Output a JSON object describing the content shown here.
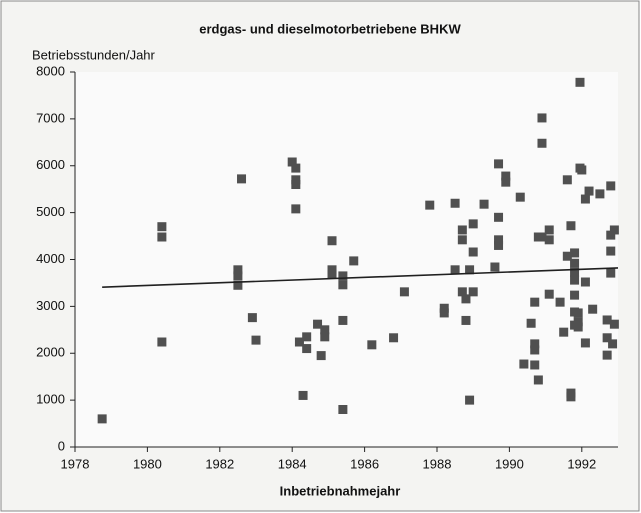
{
  "chart_data": {
    "type": "scatter",
    "title": "erdgas- und dieselmotorbetriebene BHKW",
    "ylabel": "Betriebsstunden/Jahr",
    "xlabel": "Inbetriebnahmejahr",
    "xlim": [
      1978,
      1993
    ],
    "xticks": [
      1978,
      1980,
      1982,
      1984,
      1986,
      1988,
      1990,
      1992
    ],
    "ylim": [
      0,
      8000
    ],
    "yticks": [
      0,
      1000,
      2000,
      3000,
      4000,
      5000,
      6000,
      7000,
      8000
    ],
    "grid": false,
    "series": [
      {
        "type": "scatter",
        "color": "#505050",
        "x": [
          1978.75,
          1980.4,
          1980.4,
          1980.4,
          1982.5,
          1982.5,
          1982.5,
          1982.6,
          1982.9,
          1983,
          1984,
          1984.1,
          1984.1,
          1984.1,
          1984.1,
          1984.2,
          1984.3,
          1984.4,
          1984.4,
          1984.7,
          1984.8,
          1984.9,
          1984.9,
          1985.1,
          1985.1,
          1985.1,
          1985.4,
          1985.4,
          1985.4,
          1985.4,
          1985.7,
          1986.2,
          1986.8,
          1987.1,
          1987.8,
          1988.2,
          1988.2,
          1988.5,
          1988.5,
          1988.7,
          1988.7,
          1988.7,
          1988.8,
          1988.8,
          1988.9,
          1988.9,
          1989,
          1989,
          1989,
          1989.3,
          1989.6,
          1989.7,
          1989.7,
          1989.7,
          1989.7,
          1989.9,
          1989.9,
          1990.3,
          1990.4,
          1990.6,
          1990.7,
          1990.7,
          1990.7,
          1990.7,
          1990.8,
          1990.8,
          1990.9,
          1990.9,
          1990.9,
          1991.1,
          1991.1,
          1991.1,
          1991.4,
          1991.5,
          1991.6,
          1991.6,
          1991.7,
          1991.7,
          1991.7,
          1991.8,
          1991.8,
          1991.8,
          1991.8,
          1991.8,
          1991.8,
          1991.9,
          1991.9,
          1991.8,
          1991.9,
          1991.95,
          1991.95,
          1992,
          1992.1,
          1992.1,
          1992.1,
          1992.2,
          1992.3,
          1992.5,
          1992.7,
          1992.7,
          1992.7,
          1992.8,
          1992.8,
          1992.8,
          1992.8,
          1992.85,
          1992.9,
          1992.9
        ],
        "values": [
          600,
          4700,
          4480,
          2240,
          3780,
          3650,
          3450,
          5720,
          2760,
          2280,
          6080,
          5950,
          5700,
          5600,
          5080,
          2240,
          1100,
          2350,
          2100,
          2620,
          1950,
          2350,
          2500,
          4400,
          3780,
          3680,
          3650,
          3460,
          2700,
          800,
          3970,
          2180,
          2330,
          3310,
          5160,
          2960,
          2860,
          5200,
          3780,
          4420,
          4630,
          3310,
          2700,
          3160,
          1000,
          3780,
          4160,
          4760,
          3310,
          5180,
          3840,
          6040,
          4900,
          4420,
          4300,
          5780,
          5650,
          5330,
          1770,
          2640,
          3090,
          2200,
          2070,
          1750,
          4480,
          1430,
          7020,
          6480,
          4480,
          4630,
          4420,
          3260,
          3090,
          2450,
          4070,
          5700,
          4720,
          1150,
          1070,
          4140,
          3920,
          3730,
          3560,
          3240,
          2880,
          2670,
          2560,
          2600,
          2860,
          7780,
          5950,
          5910,
          5290,
          3520,
          2220,
          5460,
          2940,
          5400,
          2710,
          2330,
          1960,
          5570,
          4520,
          4180,
          3710,
          2200,
          4630,
          2620
        ]
      },
      {
        "type": "line",
        "color": "#202020",
        "x": [
          1978.75,
          1993
        ],
        "values": [
          3410,
          3820
        ]
      }
    ]
  }
}
